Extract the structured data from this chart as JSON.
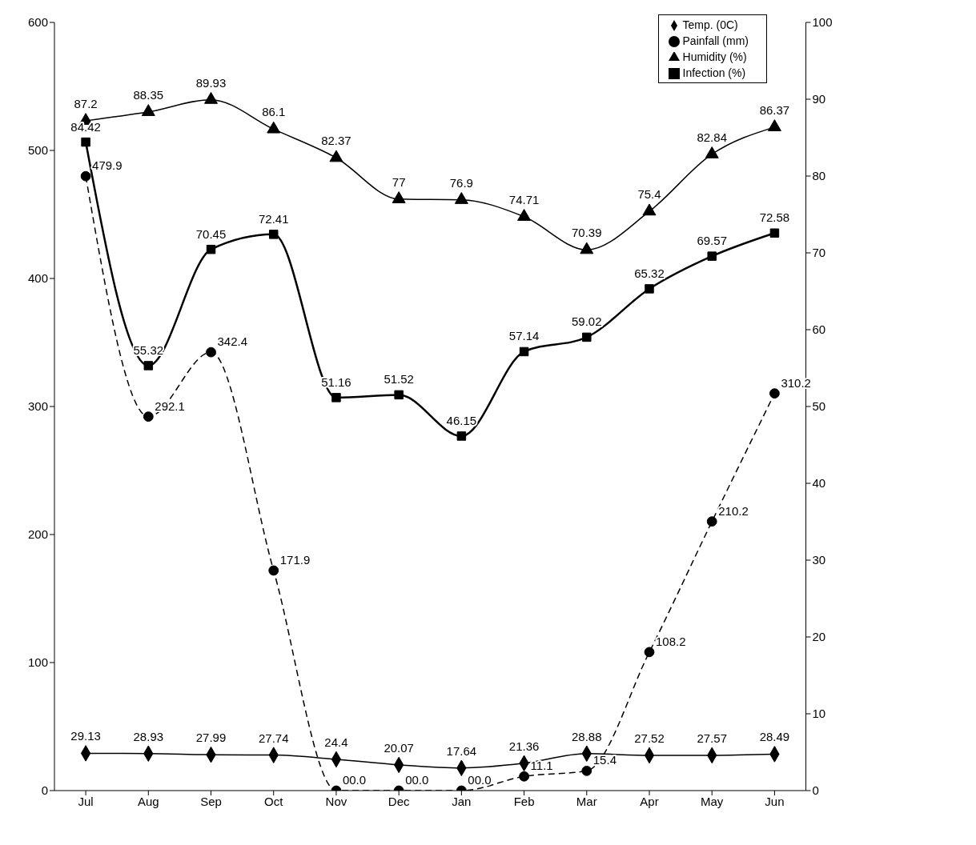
{
  "chart_data": {
    "type": "line",
    "categories": [
      "Jul",
      "Aug",
      "Sep",
      "Oct",
      "Nov",
      "Dec",
      "Jan",
      "Feb",
      "Mar",
      "Apr",
      "May",
      "Jun"
    ],
    "series": [
      {
        "name": "Temp. (0C)",
        "color": "#000000",
        "marker": "diamond",
        "line_style": "solid",
        "values": [
          29.13,
          28.93,
          27.99,
          27.74,
          24.4,
          20.07,
          17.64,
          21.36,
          28.88,
          27.52,
          27.57,
          28.49
        ],
        "value_labels": [
          "29.13",
          "28.93",
          "27.99",
          "27.74",
          "24.4",
          "20.07",
          "17.64",
          "21.36",
          "28.88",
          "27.52",
          "27.57",
          "28.49"
        ]
      },
      {
        "name": "Painfall (mm)",
        "color": "#000000",
        "marker": "circle",
        "line_style": "dashed",
        "values": [
          479.9,
          292.1,
          342.4,
          171.9,
          0,
          0,
          0,
          11.1,
          15.4,
          108.2,
          210.2,
          310.2
        ],
        "value_labels": [
          "479.9",
          "292.1",
          "342.4",
          "171.9",
          "00.0",
          "00.0",
          "00.0",
          "11.1",
          "15.4",
          "108.2",
          "210.2",
          "310.2"
        ]
      },
      {
        "name": "Humidity (%)",
        "color": "#000000",
        "marker": "triangle",
        "line_style": "solid",
        "axis": "y2",
        "values": [
          87.2,
          88.35,
          89.93,
          86.1,
          82.37,
          77,
          76.9,
          74.71,
          70.39,
          75.4,
          82.84,
          86.37
        ],
        "value_labels": [
          "87.2",
          "88.35",
          "89.93",
          "86.1",
          "82.37",
          "77",
          "76.9",
          "74.71",
          "70.39",
          "75.4",
          "82.84",
          "86.37"
        ]
      },
      {
        "name": "Infection (%)",
        "color": "#000000",
        "marker": "square",
        "line_style": "solid",
        "axis": "y2",
        "values": [
          84.42,
          55.32,
          70.45,
          72.41,
          51.16,
          51.52,
          46.15,
          57.14,
          59.02,
          65.32,
          69.57,
          72.58
        ],
        "value_labels": [
          "84.42",
          "55.32",
          "70.45",
          "72.41",
          "51.16",
          "51.52",
          "46.15",
          "57.14",
          "59.02",
          "65.32",
          "69.57",
          "72.58"
        ]
      }
    ],
    "ylim": [
      0,
      600
    ],
    "yticks": [
      0,
      100,
      200,
      300,
      400,
      500,
      600
    ],
    "y2lim": [
      0,
      100
    ],
    "y2ticks": [
      0,
      10,
      20,
      30,
      40,
      50,
      60,
      70,
      80,
      90,
      100
    ],
    "grid": false,
    "legend": "top right"
  }
}
